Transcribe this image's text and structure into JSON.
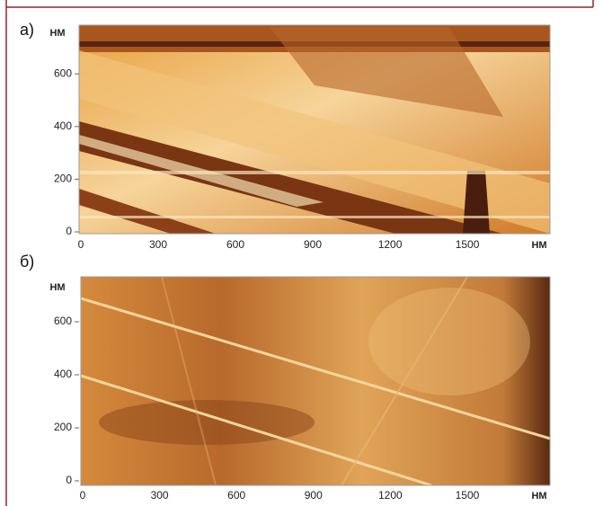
{
  "panels": [
    {
      "label": "а)",
      "y_unit": "НМ",
      "x_unit": "НМ",
      "yticks": [
        0,
        200,
        400,
        600
      ],
      "xticks": [
        0,
        300,
        600,
        900,
        1200,
        1500
      ]
    },
    {
      "label": "б)",
      "y_unit": "НМ",
      "x_unit": "НМ",
      "yticks": [
        0,
        200,
        400,
        600
      ],
      "xticks": [
        0,
        300,
        600,
        900,
        1200,
        1500
      ]
    }
  ]
}
